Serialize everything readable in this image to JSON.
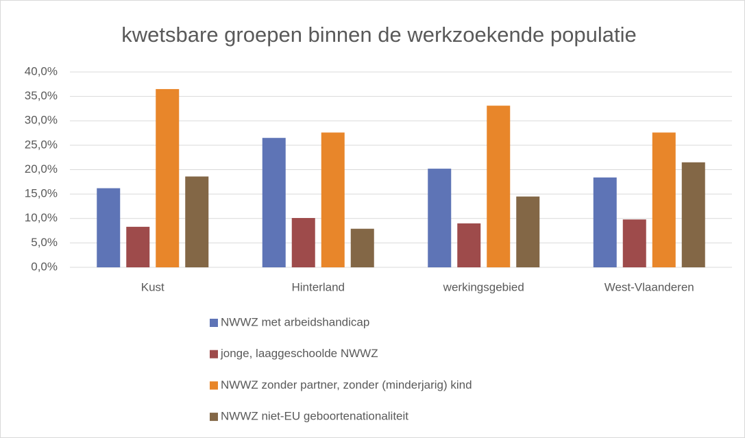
{
  "chart_data": {
    "type": "bar",
    "title": "kwetsbare groepen binnen de werkzoekende populatie",
    "categories": [
      "Kust",
      "Hinterland",
      "werkingsgebied",
      "West-Vlaanderen"
    ],
    "series": [
      {
        "name": "NWWZ met arbeidshandicap",
        "color": "#5e74b6",
        "values": [
          16.2,
          26.5,
          20.2,
          18.4
        ]
      },
      {
        "name": "jonge, laaggeschoolde NWWZ",
        "color": "#9e4b4b",
        "values": [
          8.3,
          10.1,
          9.0,
          9.8
        ]
      },
      {
        "name": "NWWZ zonder partner, zonder (minderjarig) kind",
        "color": "#e8862a",
        "values": [
          36.5,
          27.6,
          33.1,
          27.6
        ]
      },
      {
        "name": "NWWZ niet-EU geboortenationaliteit",
        "color": "#836746",
        "values": [
          18.6,
          7.9,
          14.5,
          21.5
        ]
      }
    ],
    "ylim": [
      0,
      40
    ],
    "yticks": [
      {
        "value": 0,
        "label": "0,0%"
      },
      {
        "value": 5,
        "label": "5,0%"
      },
      {
        "value": 10,
        "label": "10,0%"
      },
      {
        "value": 15,
        "label": "15,0%"
      },
      {
        "value": 20,
        "label": "20,0%"
      },
      {
        "value": 25,
        "label": "25,0%"
      },
      {
        "value": 30,
        "label": "30,0%"
      },
      {
        "value": 35,
        "label": "35,0%"
      },
      {
        "value": 40,
        "label": "40,0%"
      }
    ],
    "grid": true,
    "legend": "bottom"
  }
}
